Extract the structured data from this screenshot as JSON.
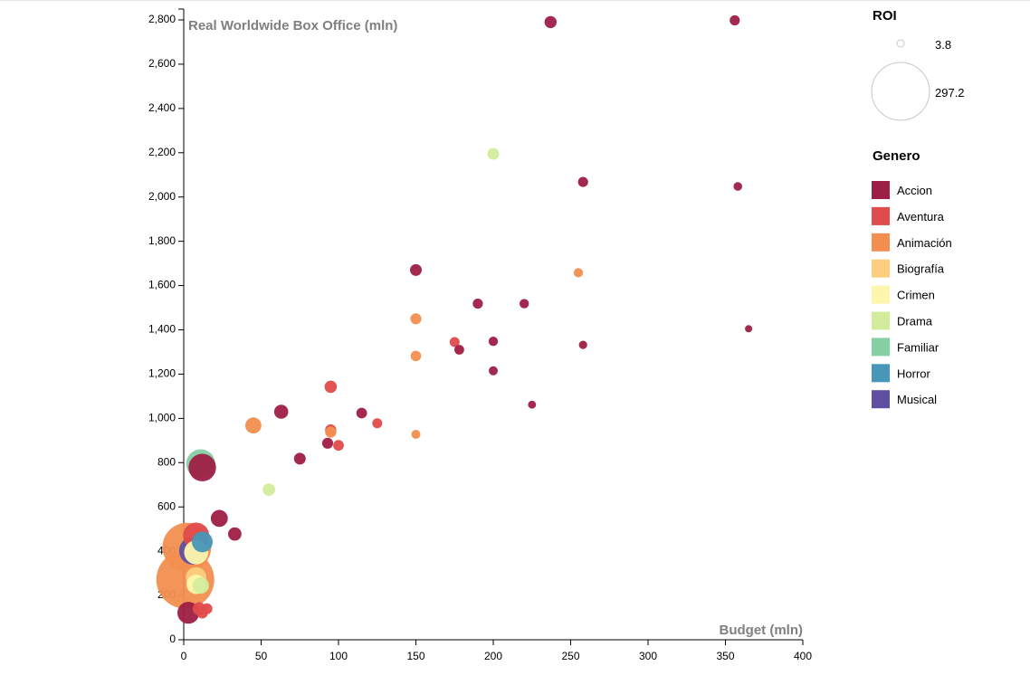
{
  "chart_data": {
    "type": "scatter",
    "title": "",
    "xlabel": "Budget (mln)",
    "ylabel": "Real Worldwide Box Office (mln)",
    "xlim": [
      0,
      400
    ],
    "ylim": [
      0,
      2850
    ],
    "xticks": [
      "0",
      "50",
      "100",
      "150",
      "200",
      "250",
      "300",
      "350",
      "400"
    ],
    "yticks": [
      "0",
      "200",
      "400",
      "600",
      "800",
      "1,000",
      "1,200",
      "1,400",
      "1,600",
      "1,800",
      "2,000",
      "2,200",
      "2,400",
      "2,600",
      "2,800"
    ],
    "grid": false,
    "size_legend": {
      "title": "ROI",
      "entries": [
        {
          "label": "3.8",
          "value": 3.8
        },
        {
          "label": "297.2",
          "value": 297.2
        }
      ]
    },
    "color_legend": {
      "title": "Genero",
      "entries": [
        {
          "label": "Accion",
          "color": "#9e1f45"
        },
        {
          "label": "Aventura",
          "color": "#e04b4b"
        },
        {
          "label": "Animación",
          "color": "#f28e4f"
        },
        {
          "label": "Biografía",
          "color": "#fbcf7f"
        },
        {
          "label": "Crimen",
          "color": "#fdf7ad"
        },
        {
          "label": "Drama",
          "color": "#d3ec9c"
        },
        {
          "label": "Familiar",
          "color": "#86cfa5"
        },
        {
          "label": "Horror",
          "color": "#4697b8"
        },
        {
          "label": "Musical",
          "color": "#5e4fa2"
        }
      ]
    },
    "points": [
      {
        "x": 237,
        "y": 2790,
        "roi": 11.8,
        "genre": "Accion"
      },
      {
        "x": 356,
        "y": 2798,
        "roi": 7.9,
        "genre": "Accion"
      },
      {
        "x": 200,
        "y": 2195,
        "roi": 11.0,
        "genre": "Drama"
      },
      {
        "x": 258,
        "y": 2068,
        "roi": 8.0,
        "genre": "Accion"
      },
      {
        "x": 358,
        "y": 2048,
        "roi": 5.7,
        "genre": "Accion"
      },
      {
        "x": 150,
        "y": 1670,
        "roi": 11.1,
        "genre": "Accion"
      },
      {
        "x": 255,
        "y": 1658,
        "roi": 6.5,
        "genre": "Animación"
      },
      {
        "x": 190,
        "y": 1518,
        "roi": 8.0,
        "genre": "Accion"
      },
      {
        "x": 220,
        "y": 1518,
        "roi": 6.9,
        "genre": "Accion"
      },
      {
        "x": 150,
        "y": 1450,
        "roi": 9.7,
        "genre": "Animación"
      },
      {
        "x": 365,
        "y": 1405,
        "roi": 3.8,
        "genre": "Accion"
      },
      {
        "x": 175,
        "y": 1345,
        "roi": 7.7,
        "genre": "Aventura"
      },
      {
        "x": 200,
        "y": 1348,
        "roi": 6.7,
        "genre": "Accion"
      },
      {
        "x": 258,
        "y": 1332,
        "roi": 5.2,
        "genre": "Accion"
      },
      {
        "x": 178,
        "y": 1310,
        "roi": 7.4,
        "genre": "Accion"
      },
      {
        "x": 150,
        "y": 1282,
        "roi": 8.5,
        "genre": "Animación"
      },
      {
        "x": 200,
        "y": 1215,
        "roi": 6.1,
        "genre": "Accion"
      },
      {
        "x": 95,
        "y": 1143,
        "roi": 12.0,
        "genre": "Aventura"
      },
      {
        "x": 225,
        "y": 1062,
        "roi": 4.7,
        "genre": "Accion"
      },
      {
        "x": 63,
        "y": 1030,
        "roi": 16.4,
        "genre": "Accion"
      },
      {
        "x": 115,
        "y": 1024,
        "roi": 8.9,
        "genre": "Accion"
      },
      {
        "x": 45,
        "y": 968,
        "roi": 21.5,
        "genre": "Animación"
      },
      {
        "x": 125,
        "y": 978,
        "roi": 7.8,
        "genre": "Aventura"
      },
      {
        "x": 95,
        "y": 948,
        "roi": 10.0,
        "genre": "Aventura"
      },
      {
        "x": 95,
        "y": 938,
        "roi": 9.9,
        "genre": "Animación"
      },
      {
        "x": 150,
        "y": 928,
        "roi": 6.2,
        "genre": "Animación"
      },
      {
        "x": 93,
        "y": 888,
        "roi": 9.5,
        "genre": "Accion"
      },
      {
        "x": 100,
        "y": 878,
        "roi": 8.8,
        "genre": "Aventura"
      },
      {
        "x": 75,
        "y": 818,
        "roi": 10.9,
        "genre": "Accion"
      },
      {
        "x": 12,
        "y": 778,
        "roi": 64.8,
        "genre": "Accion"
      },
      {
        "x": 11,
        "y": 795,
        "roi": 72.3,
        "genre": "Familiar"
      },
      {
        "x": 55,
        "y": 678,
        "roi": 12.3,
        "genre": "Drama"
      },
      {
        "x": 23,
        "y": 548,
        "roi": 23.8,
        "genre": "Accion"
      },
      {
        "x": 33,
        "y": 478,
        "roi": 14.5,
        "genre": "Accion"
      },
      {
        "x": 2,
        "y": 418,
        "roi": 209.0,
        "genre": "Animación"
      },
      {
        "x": 8,
        "y": 395,
        "roi": 49.4,
        "genre": "Crimen"
      },
      {
        "x": 8,
        "y": 470,
        "roi": 58.8,
        "genre": "Aventura"
      },
      {
        "x": 12,
        "y": 442,
        "roi": 36.8,
        "genre": "Horror"
      },
      {
        "x": 6,
        "y": 402,
        "roi": 67.0,
        "genre": "Musical"
      },
      {
        "x": 1,
        "y": 272,
        "roi": 297.2,
        "genre": "Animación"
      },
      {
        "x": 8,
        "y": 250,
        "roi": 31.3,
        "genre": "Crimen"
      },
      {
        "x": 8,
        "y": 282,
        "roi": 35.3,
        "genre": "Biografía"
      },
      {
        "x": 11,
        "y": 245,
        "roi": 22.3,
        "genre": "Drama"
      },
      {
        "x": 3,
        "y": 122,
        "roi": 40.7,
        "genre": "Accion"
      },
      {
        "x": 15,
        "y": 140,
        "roi": 9.3,
        "genre": "Aventura"
      },
      {
        "x": 12,
        "y": 122,
        "roi": 10.2,
        "genre": "Aventura"
      },
      {
        "x": 10,
        "y": 140,
        "roi": 14.0,
        "genre": "Aventura"
      }
    ]
  }
}
